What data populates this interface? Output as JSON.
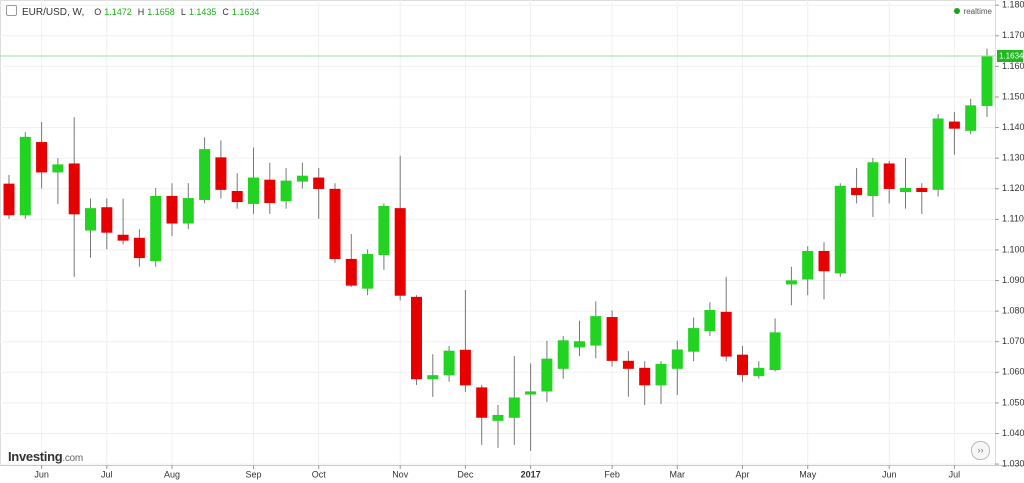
{
  "chart_data": {
    "type": "candlestick",
    "header": {
      "symbol": "EUR/USD, W,",
      "items": [
        {
          "label": "O",
          "value": 1.1472
        },
        {
          "label": "H",
          "value": 1.1658
        },
        {
          "label": "L",
          "value": 1.1435
        },
        {
          "label": "C",
          "value": 1.1634
        }
      ]
    },
    "status": "realtime",
    "brand": {
      "name": "Investing",
      "suffix": ".com"
    },
    "categories": [
      null,
      null,
      "Jun",
      null,
      null,
      null,
      "Jul",
      null,
      null,
      null,
      "Aug",
      null,
      null,
      null,
      null,
      "Sep",
      null,
      null,
      null,
      "Oct",
      null,
      null,
      null,
      null,
      "Nov",
      null,
      null,
      null,
      "Dec",
      null,
      null,
      null,
      "2017",
      null,
      null,
      null,
      null,
      "Feb",
      null,
      null,
      null,
      "Mar",
      null,
      null,
      null,
      "Apr",
      null,
      null,
      null,
      "May",
      null,
      null,
      null,
      null,
      "Jun",
      null,
      null,
      null,
      "Jul",
      null,
      null
    ],
    "open": [
      1.1215,
      1.1115,
      1.1351,
      1.1255,
      1.1281,
      1.1065,
      1.1138,
      1.1048,
      1.1038,
      1.0965,
      1.1175,
      1.1088,
      1.1165,
      1.1301,
      1.1191,
      1.1152,
      1.1228,
      1.1161,
      1.1225,
      1.1235,
      1.1198,
      1.0969,
      1.0875,
      1.0985,
      1.1135,
      1.0845,
      1.0579,
      1.0592,
      1.0672,
      1.0549,
      1.0443,
      1.0453,
      1.0529,
      1.0539,
      1.0613,
      1.0683,
      1.0689,
      1.0779,
      1.0636,
      1.0613,
      1.0559,
      1.0613,
      1.0669,
      1.0736,
      1.0796,
      1.0656,
      1.0589,
      1.0609,
      1.0889,
      1.0905,
      1.0995,
      1.0925,
      1.1201,
      1.1178,
      1.1281,
      1.1191,
      1.1201,
      1.1198,
      1.1418,
      1.1391,
      1.1472
    ],
    "high": [
      1.1245,
      1.1385,
      1.1418,
      1.13,
      1.1434,
      1.1168,
      1.1168,
      1.1168,
      1.1068,
      1.1202,
      1.1218,
      1.1218,
      1.1368,
      1.1358,
      1.1251,
      1.1335,
      1.1285,
      1.1268,
      1.1285,
      1.1268,
      1.1218,
      1.1052,
      1.1002,
      1.1152,
      1.1308,
      1.0852,
      1.0659,
      1.0686,
      1.0869,
      1.0559,
      1.0493,
      1.0653,
      1.0629,
      1.0703,
      1.0719,
      1.0769,
      1.0832,
      1.0802,
      1.0669,
      1.0636,
      1.0636,
      1.0703,
      1.0779,
      1.0829,
      1.0912,
      1.0686,
      1.0636,
      1.0776,
      1.0945,
      1.1012,
      1.1025,
      1.1218,
      1.1268,
      1.1301,
      1.1291,
      1.1301,
      1.1218,
      1.1444,
      1.1451,
      1.1494,
      1.1658
    ],
    "low": [
      1.1102,
      1.1102,
      1.1201,
      1.115,
      1.0912,
      1.0975,
      1.1002,
      1.1018,
      1.0945,
      1.0945,
      1.1045,
      1.1068,
      1.1152,
      1.1168,
      1.1135,
      1.1118,
      1.1118,
      1.1135,
      1.1201,
      1.1102,
      1.0958,
      1.0879,
      1.0852,
      1.0935,
      1.0835,
      1.0559,
      1.052,
      1.0569,
      1.0536,
      1.0363,
      1.0353,
      1.0363,
      1.0343,
      1.0503,
      1.0579,
      1.0653,
      1.0646,
      1.0619,
      1.052,
      1.0493,
      1.0496,
      1.0526,
      1.0636,
      1.0719,
      1.0636,
      1.0569,
      1.0579,
      1.0603,
      1.0819,
      1.0852,
      1.0839,
      1.0912,
      1.1152,
      1.1108,
      1.1152,
      1.1135,
      1.1118,
      1.1175,
      1.1311,
      1.1378,
      1.1435
    ],
    "close": [
      1.1115,
      1.1368,
      1.1255,
      1.1278,
      1.1118,
      1.1135,
      1.1058,
      1.1032,
      1.0975,
      1.1175,
      1.1088,
      1.1168,
      1.1328,
      1.1198,
      1.1158,
      1.1235,
      1.1155,
      1.1225,
      1.1241,
      1.1201,
      1.0972,
      1.0885,
      1.0985,
      1.1142,
      1.0852,
      1.0579,
      1.0589,
      1.0669,
      1.0559,
      1.0453,
      1.0459,
      1.0516,
      1.0536,
      1.0643,
      1.0703,
      1.07,
      1.0782,
      1.0639,
      1.0613,
      1.0559,
      1.0626,
      1.0673,
      1.0743,
      1.0802,
      1.0653,
      1.0593,
      1.0613,
      1.0729,
      1.0899,
      1.0995,
      1.0932,
      1.1208,
      1.1181,
      1.1285,
      1.1201,
      1.1201,
      1.1191,
      1.1428,
      1.1398,
      1.1471,
      1.1634
    ],
    "up_color": "#22d322",
    "down_color": "#e60000",
    "last_price": 1.1634,
    "ylim": [
      1.0297,
      1.1817
    ],
    "yticks": [
      {
        "value": 1.03,
        "label": "1.0300"
      },
      {
        "value": 1.04,
        "label": "1.0400"
      },
      {
        "value": 1.05,
        "label": "1.0500"
      },
      {
        "value": 1.06,
        "label": "1.0600"
      },
      {
        "value": 1.07,
        "label": "1.0700"
      },
      {
        "value": 1.08,
        "label": "1.0800"
      },
      {
        "value": 1.09,
        "label": "1.0900"
      },
      {
        "value": 1.1,
        "label": "1.1000"
      },
      {
        "value": 1.11,
        "label": "1.1100"
      },
      {
        "value": 1.12,
        "label": "1.1200"
      },
      {
        "value": 1.13,
        "label": "1.1300"
      },
      {
        "value": 1.14,
        "label": "1.1400"
      },
      {
        "value": 1.15,
        "label": "1.1500"
      },
      {
        "value": 1.16,
        "label": "1.1600"
      },
      {
        "value": 1.17,
        "label": "1.1700"
      },
      {
        "value": 1.18,
        "label": "1.1800"
      }
    ],
    "grid": true
  }
}
